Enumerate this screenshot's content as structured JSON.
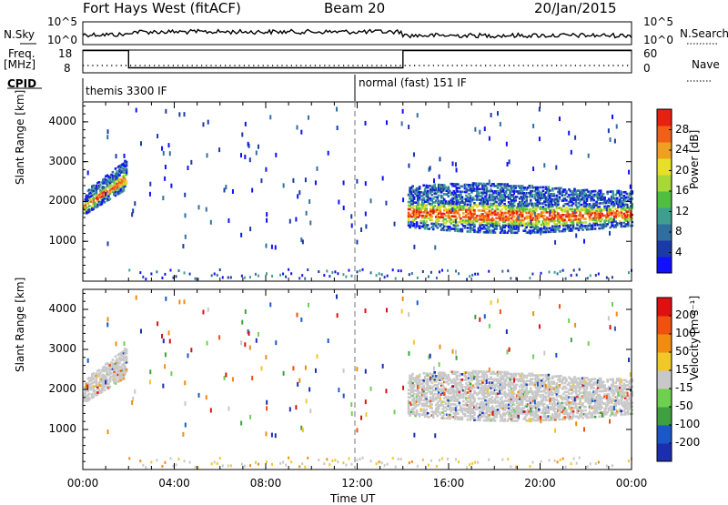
{
  "header": {
    "station": "Fort Hays West (fitACF)",
    "beam": "Beam 20",
    "date": "20/Jan/2015"
  },
  "top_panel": {
    "left_label_1": "N.Sky",
    "left_tick_top": "10^5",
    "left_tick_bottom": "10^0",
    "right_tick_top": "10^5",
    "right_tick_bottom": "10^0",
    "right_label": "N.Search"
  },
  "freq_panel": {
    "left_label_line1": "Freq.",
    "left_label_line2": "[MHz]",
    "left_tick_top": "18",
    "left_tick_bottom": "8",
    "right_tick_top": "60",
    "right_tick_bottom": "0",
    "right_label": "Nave"
  },
  "cpid_panel": {
    "label": "CPID",
    "segments": [
      {
        "text": "themis 3300 IF",
        "start_hour": 0
      },
      {
        "text": "normal (fast) 151 IF",
        "start_hour": 12
      }
    ]
  },
  "chart_data": [
    {
      "type": "heatmap",
      "title": "",
      "ylabel": "Slant Range [km]",
      "yticks": [
        "1000",
        "2000",
        "3000",
        "4000"
      ],
      "ylim": [
        0,
        4500
      ],
      "colorbar_label": "Power [dB]",
      "colorbar_ticks": [
        "4",
        "8",
        "12",
        "16",
        "20",
        "24",
        "28"
      ],
      "colorbar_colors": [
        "#1010ff",
        "#1a3aa8",
        "#2f6fa0",
        "#3f9f8f",
        "#4fbf3f",
        "#a8d838",
        "#e8e028",
        "#f0a020",
        "#f06018",
        "#e82010"
      ]
    },
    {
      "type": "heatmap",
      "title": "",
      "ylabel": "Slant Range [km]",
      "yticks": [
        "1000",
        "2000",
        "3000",
        "4000"
      ],
      "ylim": [
        0,
        4500
      ],
      "colorbar_label": "Velocity [m s⁻¹]",
      "colorbar_ticks": [
        "200",
        "100",
        "50",
        "15",
        "-15",
        "-50",
        "-100",
        "-200"
      ],
      "colorbar_colors": [
        "#1a2fb0",
        "#1a58c8",
        "#3fa03f",
        "#6fd04f",
        "#c8c8c8",
        "#f0c828",
        "#f08c10",
        "#f05010",
        "#e01010"
      ]
    }
  ],
  "xaxis": {
    "label": "Time UT",
    "ticks": [
      "00:00",
      "04:00",
      "08:00",
      "12:00",
      "16:00",
      "20:00",
      "00:00"
    ]
  }
}
